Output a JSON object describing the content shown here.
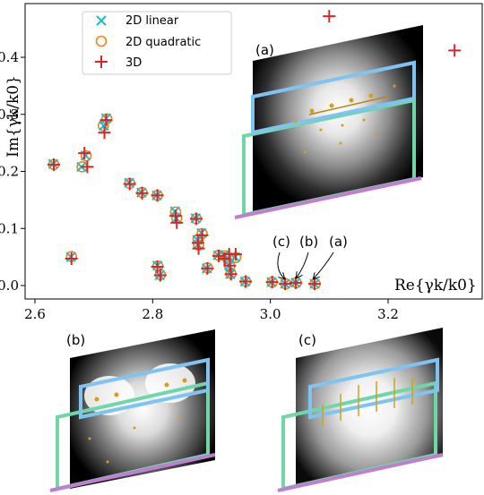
{
  "chart_data": {
    "type": "scatter",
    "title": "",
    "xlabel": "Re{γk/k0}",
    "ylabel": "Im{γk/k0}",
    "xlim": [
      2.6,
      3.35
    ],
    "ylim": [
      -0.01,
      0.47
    ],
    "xticks": [
      "2.6",
      "2.8",
      "3.0",
      "3.2"
    ],
    "yticks": [
      "0.0",
      "0.1",
      "0.2",
      "0.3",
      "0.4"
    ],
    "legend": {
      "placement": "top-left"
    },
    "colors": {
      "linear": "#17becf",
      "quadratic": "#ff7f0e",
      "threeD": "#d62728"
    },
    "series": [
      {
        "name": "2D linear",
        "marker": "x",
        "points": [
          [
            2.631,
            0.213
          ],
          [
            2.661,
            0.05
          ],
          [
            2.679,
            0.208
          ],
          [
            2.686,
            0.228
          ],
          [
            2.717,
            0.28
          ],
          [
            2.721,
            0.293
          ],
          [
            2.76,
            0.18
          ],
          [
            2.781,
            0.163
          ],
          [
            2.807,
            0.158
          ],
          [
            2.808,
            0.035
          ],
          [
            2.812,
            0.018
          ],
          [
            2.838,
            0.13
          ],
          [
            2.84,
            0.118
          ],
          [
            2.873,
            0.118
          ],
          [
            2.876,
            0.08
          ],
          [
            2.877,
            0.072
          ],
          [
            2.883,
            0.092
          ],
          [
            2.892,
            0.03
          ],
          [
            2.911,
            0.053
          ],
          [
            2.921,
            0.053
          ],
          [
            2.928,
            0.048
          ],
          [
            2.93,
            0.035
          ],
          [
            2.932,
            0.02
          ],
          [
            2.94,
            0.05
          ],
          [
            2.957,
            0.007
          ],
          [
            3.002,
            0.006
          ],
          [
            3.025,
            0.003
          ],
          [
            3.043,
            0.005
          ],
          [
            3.075,
            0.003
          ]
        ]
      },
      {
        "name": "2D quadratic",
        "marker": "o",
        "points": [
          [
            2.632,
            0.212
          ],
          [
            2.662,
            0.051
          ],
          [
            2.68,
            0.208
          ],
          [
            2.687,
            0.227
          ],
          [
            2.716,
            0.28
          ],
          [
            2.722,
            0.292
          ],
          [
            2.761,
            0.179
          ],
          [
            2.782,
            0.163
          ],
          [
            2.808,
            0.158
          ],
          [
            2.809,
            0.034
          ],
          [
            2.813,
            0.019
          ],
          [
            2.839,
            0.129
          ],
          [
            2.841,
            0.118
          ],
          [
            2.874,
            0.117
          ],
          [
            2.877,
            0.081
          ],
          [
            2.878,
            0.071
          ],
          [
            2.884,
            0.091
          ],
          [
            2.893,
            0.031
          ],
          [
            2.912,
            0.053
          ],
          [
            2.922,
            0.052
          ],
          [
            2.929,
            0.047
          ],
          [
            2.931,
            0.034
          ],
          [
            2.933,
            0.021
          ],
          [
            2.941,
            0.049
          ],
          [
            2.958,
            0.007
          ],
          [
            3.003,
            0.006
          ],
          [
            3.026,
            0.003
          ],
          [
            3.044,
            0.005
          ],
          [
            3.076,
            0.003
          ]
        ]
      },
      {
        "name": "3D",
        "marker": "+",
        "points": [
          [
            2.632,
            0.212
          ],
          [
            2.662,
            0.047
          ],
          [
            2.684,
            0.232
          ],
          [
            2.689,
            0.208
          ],
          [
            2.718,
            0.268
          ],
          [
            2.721,
            0.29
          ],
          [
            2.761,
            0.178
          ],
          [
            2.782,
            0.162
          ],
          [
            2.808,
            0.158
          ],
          [
            2.808,
            0.033
          ],
          [
            2.813,
            0.018
          ],
          [
            2.839,
            0.122
          ],
          [
            2.841,
            0.11
          ],
          [
            2.874,
            0.117
          ],
          [
            2.877,
            0.075
          ],
          [
            2.878,
            0.065
          ],
          [
            2.884,
            0.088
          ],
          [
            2.893,
            0.03
          ],
          [
            2.912,
            0.052
          ],
          [
            2.922,
            0.047
          ],
          [
            2.93,
            0.055
          ],
          [
            2.931,
            0.035
          ],
          [
            2.933,
            0.02
          ],
          [
            2.941,
            0.055
          ],
          [
            2.958,
            0.007
          ],
          [
            3.003,
            0.006
          ],
          [
            3.025,
            0.003
          ],
          [
            3.043,
            0.005
          ],
          [
            3.075,
            0.003
          ],
          [
            3.1,
            0.472
          ],
          [
            3.313,
            0.412
          ]
        ]
      }
    ],
    "annotations": [
      "(a)",
      "(b)",
      "(c)"
    ],
    "insets": [
      {
        "label": "(a)",
        "target_point": [
          3.075,
          0.003
        ],
        "field_pattern": "single-lobe"
      },
      {
        "label": "(b)",
        "target_point": [
          3.043,
          0.005
        ],
        "field_pattern": "double-lobe"
      },
      {
        "label": "(c)",
        "target_point": [
          3.025,
          0.003
        ],
        "field_pattern": "single-lobe-vertical"
      }
    ]
  }
}
